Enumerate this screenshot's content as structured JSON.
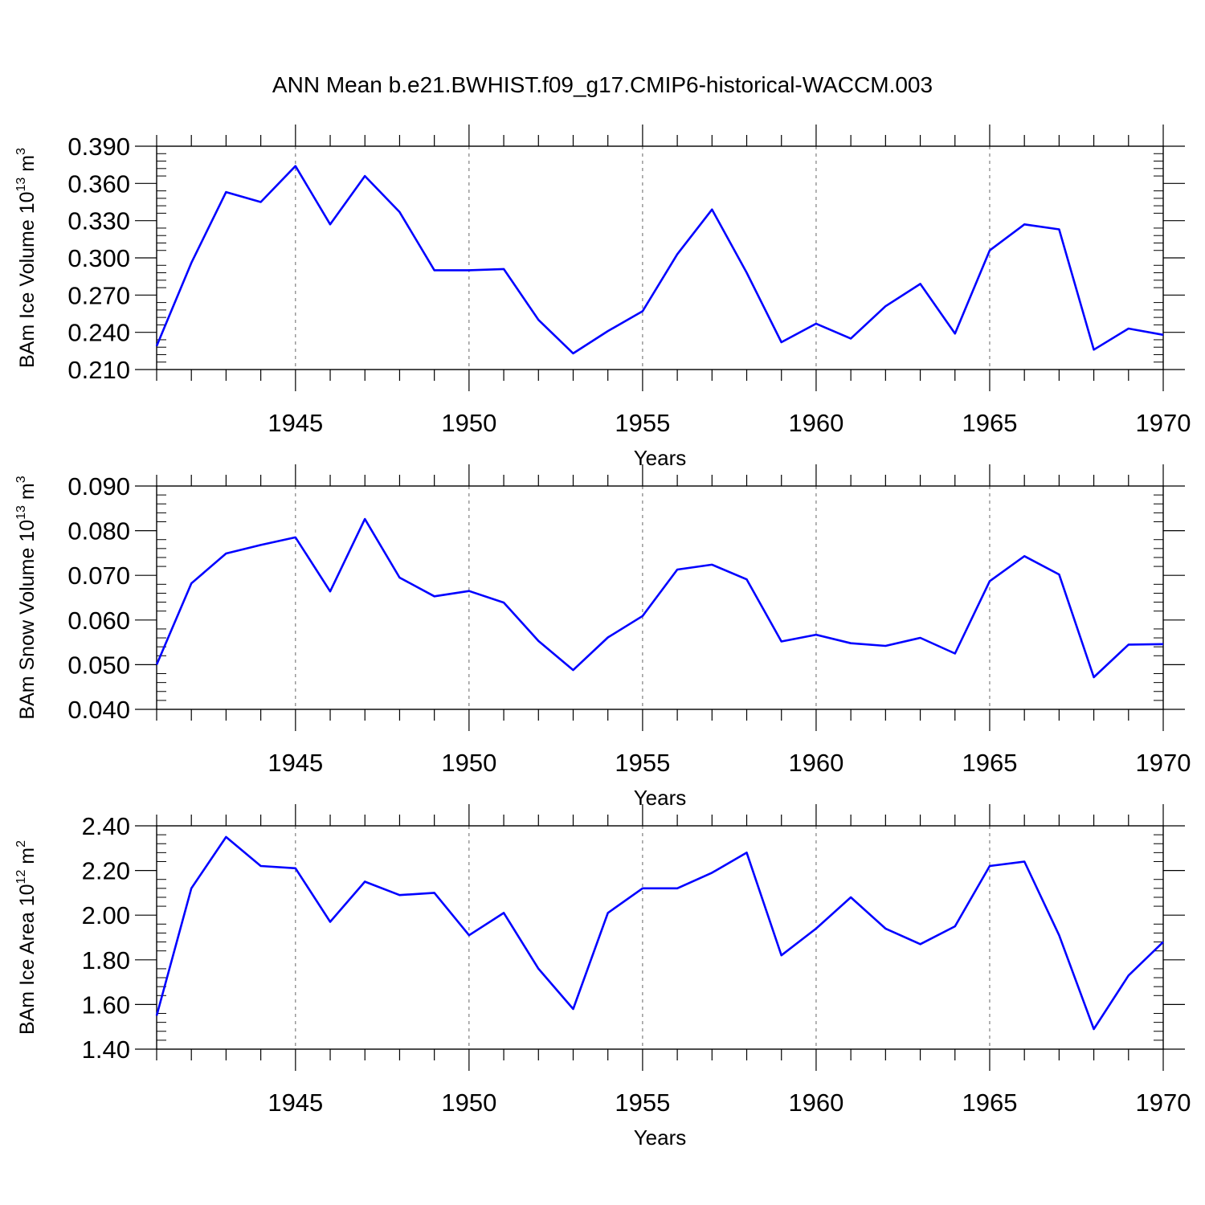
{
  "figure": {
    "title": "ANN Mean b.e21.BWHIST.f09_g17.CMIP6-historical-WACCM.003"
  },
  "chart_data": [
    {
      "type": "line",
      "ylabel_main": "BAm Ice Volume 10",
      "ylabel_sup": "13",
      "ylabel_unit": " m",
      "ylabel_unit_sup": "3",
      "xlabel": "Years",
      "xlim": [
        1941,
        1970
      ],
      "ylim": [
        0.21,
        0.39
      ],
      "yticks": [
        0.21,
        0.24,
        0.27,
        0.3,
        0.33,
        0.36,
        0.39
      ],
      "ytick_labels": [
        "0.210",
        "0.240",
        "0.270",
        "0.300",
        "0.330",
        "0.360",
        "0.390"
      ],
      "xticks": [
        1945,
        1950,
        1955,
        1960,
        1965,
        1970
      ],
      "xtick_labels": [
        "1945",
        "1950",
        "1955",
        "1960",
        "1965",
        "1970"
      ],
      "line_color": "#0000ff",
      "grid": "dashed vertical at major x ticks",
      "x": [
        1941,
        1942,
        1943,
        1944,
        1945,
        1946,
        1947,
        1948,
        1949,
        1950,
        1951,
        1952,
        1953,
        1954,
        1955,
        1956,
        1957,
        1958,
        1959,
        1960,
        1961,
        1962,
        1963,
        1964,
        1965,
        1966,
        1967,
        1968,
        1969,
        1970
      ],
      "values": [
        0.229,
        0.296,
        0.353,
        0.345,
        0.374,
        0.327,
        0.366,
        0.337,
        0.29,
        0.29,
        0.291,
        0.25,
        0.223,
        0.241,
        0.257,
        0.303,
        0.339,
        0.288,
        0.232,
        0.247,
        0.235,
        0.261,
        0.279,
        0.239,
        0.306,
        0.327,
        0.323,
        0.226,
        0.243,
        0.238
      ]
    },
    {
      "type": "line",
      "ylabel_main": "BAm Snow Volume 10",
      "ylabel_sup": "13",
      "ylabel_unit": " m",
      "ylabel_unit_sup": "3",
      "xlabel": "Years",
      "xlim": [
        1941,
        1970
      ],
      "ylim": [
        0.04,
        0.09
      ],
      "yticks": [
        0.04,
        0.05,
        0.06,
        0.07,
        0.08,
        0.09
      ],
      "ytick_labels": [
        "0.040",
        "0.050",
        "0.060",
        "0.070",
        "0.080",
        "0.090"
      ],
      "xticks": [
        1945,
        1950,
        1955,
        1960,
        1965,
        1970
      ],
      "xtick_labels": [
        "1945",
        "1950",
        "1955",
        "1960",
        "1965",
        "1970"
      ],
      "line_color": "#0000ff",
      "grid": "dashed vertical at major x ticks",
      "x": [
        1941,
        1942,
        1943,
        1944,
        1945,
        1946,
        1947,
        1948,
        1949,
        1950,
        1951,
        1952,
        1953,
        1954,
        1955,
        1956,
        1957,
        1958,
        1959,
        1960,
        1961,
        1962,
        1963,
        1964,
        1965,
        1966,
        1967,
        1968,
        1969,
        1970
      ],
      "values": [
        0.05,
        0.0682,
        0.0749,
        0.0768,
        0.0785,
        0.0664,
        0.0826,
        0.0695,
        0.0653,
        0.0665,
        0.0639,
        0.0553,
        0.0488,
        0.0561,
        0.0609,
        0.0713,
        0.0724,
        0.0691,
        0.0552,
        0.0567,
        0.0548,
        0.0542,
        0.056,
        0.0525,
        0.0687,
        0.0743,
        0.0702,
        0.0472,
        0.0545,
        0.0546
      ]
    },
    {
      "type": "line",
      "ylabel_main": "BAm Ice Area 10",
      "ylabel_sup": "12",
      "ylabel_unit": " m",
      "ylabel_unit_sup": "2",
      "xlabel": "Years",
      "xlim": [
        1941,
        1970
      ],
      "ylim": [
        1.4,
        2.4
      ],
      "yticks": [
        1.4,
        1.6,
        1.8,
        2.0,
        2.2,
        2.4
      ],
      "ytick_labels": [
        "1.40",
        "1.60",
        "1.80",
        "2.00",
        "2.20",
        "2.40"
      ],
      "xticks": [
        1945,
        1950,
        1955,
        1960,
        1965,
        1970
      ],
      "xtick_labels": [
        "1945",
        "1950",
        "1955",
        "1960",
        "1965",
        "1970"
      ],
      "line_color": "#0000ff",
      "grid": "dashed vertical at major x ticks",
      "x": [
        1941,
        1942,
        1943,
        1944,
        1945,
        1946,
        1947,
        1948,
        1949,
        1950,
        1951,
        1952,
        1953,
        1954,
        1955,
        1956,
        1957,
        1958,
        1959,
        1960,
        1961,
        1962,
        1963,
        1964,
        1965,
        1966,
        1967,
        1968,
        1969,
        1970
      ],
      "values": [
        1.55,
        2.12,
        2.35,
        2.22,
        2.21,
        1.97,
        2.15,
        2.09,
        2.1,
        1.91,
        2.01,
        1.76,
        1.58,
        2.01,
        2.12,
        2.12,
        2.19,
        2.28,
        1.82,
        1.94,
        2.08,
        1.94,
        1.87,
        1.95,
        2.22,
        2.24,
        1.91,
        1.49,
        1.73,
        1.88
      ]
    }
  ]
}
